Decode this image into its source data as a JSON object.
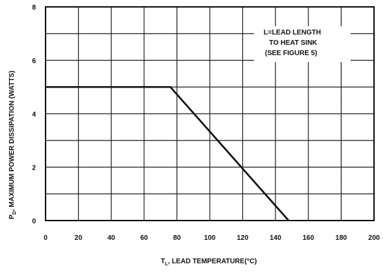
{
  "chart_data": {
    "type": "line",
    "title": "",
    "xlabel": "T",
    "xlabel_sub": "L",
    "xlabel_rest": ", LEAD TEMPERATURE(°C)",
    "ylabel": "P",
    "ylabel_sub": "D",
    "ylabel_rest": ", MAXIMUM POWER DISSIPATION (WATTS)",
    "xlim": [
      0,
      200
    ],
    "ylim": [
      0,
      8
    ],
    "x_ticks": [
      0,
      20,
      40,
      60,
      80,
      100,
      120,
      140,
      160,
      180,
      200
    ],
    "x_tick_labels": [
      "0",
      "20",
      "40",
      "60",
      "80",
      "100",
      "120",
      "140",
      "160",
      "180",
      "200"
    ],
    "y_ticks": [
      0,
      2,
      4,
      6,
      8
    ],
    "y_tick_labels": [
      "0",
      "2",
      "4",
      "6",
      "8"
    ],
    "grid": true,
    "series": [
      {
        "x": [
          0,
          76,
          148
        ],
        "y": [
          5,
          5,
          0
        ]
      }
    ],
    "annotation_lines": [
      "L=LEAD LENGTH",
      "TO HEAT SINK",
      "(SEE FIGURE 5)"
    ]
  }
}
